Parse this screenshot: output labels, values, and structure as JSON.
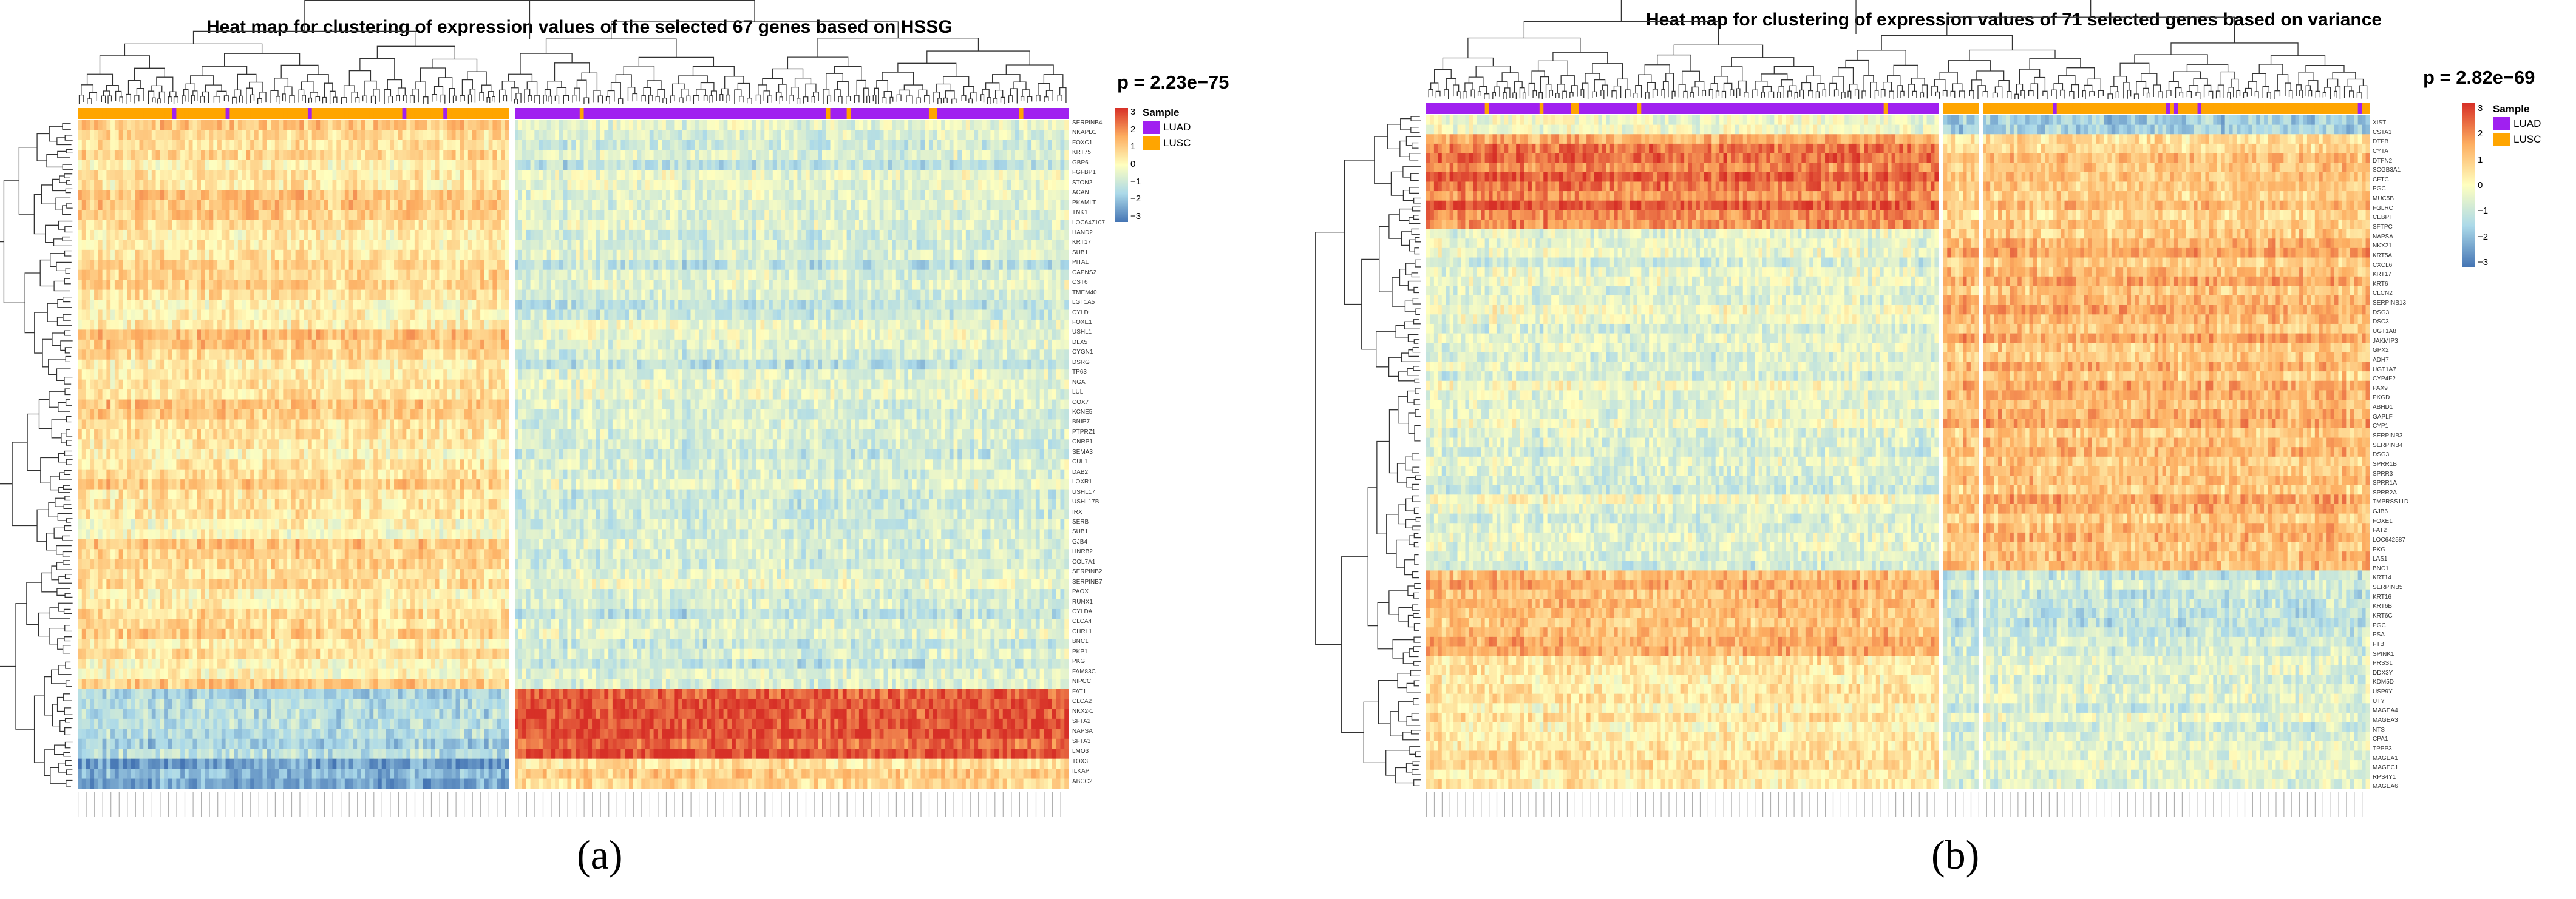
{
  "chart_data": [
    {
      "panel": "a",
      "type": "heatmap",
      "title": "Heat map for clustering of expression values of the selected 67 genes based on HSSG",
      "p_value": "p = 2.23e−75",
      "legend_title": "Sample",
      "legend": [
        {
          "label": "LUAD",
          "color": "#a020f0"
        },
        {
          "label": "LUSC",
          "color": "#ffa500"
        }
      ],
      "colorbar": {
        "ticks": [
          "3",
          "2",
          "1",
          "0",
          "−1",
          "−2",
          "−3"
        ],
        "range": [
          -3,
          3
        ],
        "colors": [
          "#d73027",
          "#fdae61",
          "#ffffbf",
          "#abd9e9",
          "#4575b4"
        ]
      },
      "n_genes": 67,
      "gene_labels": [
        "SERPINB4",
        "NKAPD1",
        "FOXC1",
        "KRT75",
        "GBP6",
        "FGFBP1",
        "STON2",
        "ACAN",
        "PKAMLT",
        "TNK1",
        "LOC647107",
        "HAND2",
        "KRT17",
        "SUB1",
        "PITAL",
        "CAPNS2",
        "CST6",
        "TMEM40",
        "LGT1A5",
        "CYLD",
        "FOXE1",
        "USHL1",
        "DLX5",
        "CYGN1",
        "DSRG",
        "TP63",
        "NGA",
        "LUL",
        "COX7",
        "KCNE5",
        "BNIP7",
        "PTPRZ1",
        "CNRP1",
        "SEMA3",
        "CUL1",
        "DAB2",
        "LOXR1",
        "USHL17",
        "USHL17B",
        "IRX",
        "SERB",
        "SUB1",
        "GJB4",
        "HNRB2",
        "COL7A1",
        "SERPINB2",
        "SERPINB7",
        "PAOX",
        "RUNX1",
        "CYLDA",
        "CLCA4",
        "CHRL1",
        "BNC1",
        "PKP1",
        "PKG",
        "FAM83C",
        "NIPCC",
        "FAT1",
        "CLCA2",
        "NKX2-1",
        "SFTA2",
        "NAPSA",
        "SFTA3",
        "LMO3",
        "TOX3",
        "ILKAP",
        "ABCC2"
      ],
      "groups": [
        "LUSC",
        "LUAD"
      ],
      "pattern_note": "LUSC block left, LUAD block right"
    },
    {
      "panel": "b",
      "type": "heatmap",
      "title": "Heat map for clustering of expression values of 71 selected genes based on variance",
      "p_value": "p = 2.82e−69",
      "legend_title": "Sample",
      "legend": [
        {
          "label": "LUAD",
          "color": "#a020f0"
        },
        {
          "label": "LUSC",
          "color": "#ffa500"
        }
      ],
      "colorbar": {
        "ticks": [
          "3",
          "2",
          "1",
          "0",
          "−1",
          "−2",
          "−3"
        ],
        "range": [
          -3,
          3
        ],
        "colors": [
          "#d73027",
          "#fdae61",
          "#ffffbf",
          "#abd9e9",
          "#4575b4"
        ]
      },
      "n_genes": 71,
      "gene_labels": [
        "XIST",
        "CSTA1",
        "DTFB",
        "CYTA",
        "DTFN2",
        "SCGB3A1",
        "CFTC",
        "PGC",
        "MUC5B",
        "FGLRC",
        "CEBPT",
        "SFTPC",
        "NAPSA",
        "NKX21",
        "KRT5A",
        "CXCL6",
        "KRT17",
        "KRT6",
        "CLCN2",
        "SERPINB13",
        "DSG3",
        "DSC3",
        "UGT1A8",
        "JAKMIP3",
        "GPX2",
        "ADH7",
        "UGT1A7",
        "CYP4F2",
        "PAX9",
        "PKGD",
        "ABHD1",
        "GAPLF",
        "CYP1",
        "SERPINB3",
        "SERPINB4",
        "DSG3",
        "SPRR1B",
        "SPRR3",
        "SPRR1A",
        "SPRR2A",
        "TMPRSS11D",
        "GJB6",
        "FOXE1",
        "FAT2",
        "LOC642587",
        "PKG",
        "LAS1",
        "BNC1",
        "KRT14",
        "SERPINB5",
        "KRT16",
        "KRT6B",
        "KRT6C",
        "PGC",
        "PSA",
        "FTB",
        "SPINK1",
        "PRSS1",
        "DDX3Y",
        "KDM5D",
        "USP9Y",
        "UTY",
        "MAGEA4",
        "MAGEA3",
        "NTS",
        "CPA1",
        "TPPP3",
        "MAGEA1",
        "MAGEC1",
        "RPS4Y1",
        "MAGEA6"
      ],
      "groups": [
        "LUAD",
        "LUSC"
      ],
      "pattern_note": "LUAD block left, LUSC block right"
    }
  ],
  "panel_labels": {
    "a": "(a)",
    "b": "(b)"
  }
}
